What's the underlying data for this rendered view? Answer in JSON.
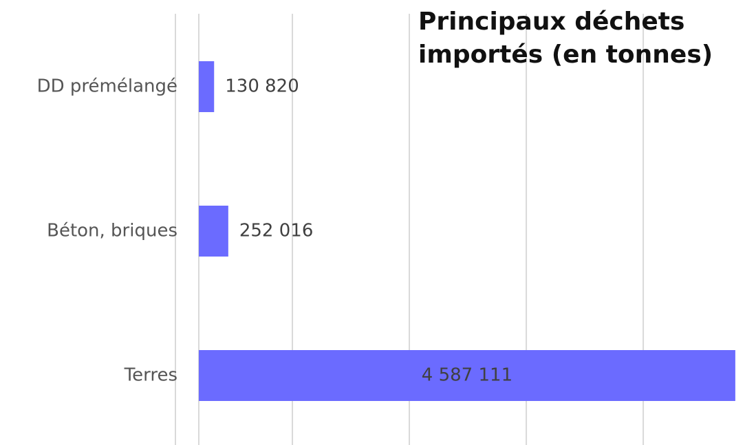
{
  "chart_data": {
    "type": "hbar",
    "title": "Principaux déchets importés (en tonnes)",
    "categories": [
      "DD prémélangé",
      "Béton, briques",
      "Terres"
    ],
    "values": [
      130820,
      252016,
      4587111
    ],
    "value_labels": [
      "130 820",
      "252 016",
      "4 587 111"
    ],
    "color": "#6b6bff",
    "xlim": [
      -200000,
      4670000
    ],
    "xticks": [
      -200000,
      0,
      800000,
      1800000,
      2800000,
      3800000
    ],
    "grid": true
  }
}
